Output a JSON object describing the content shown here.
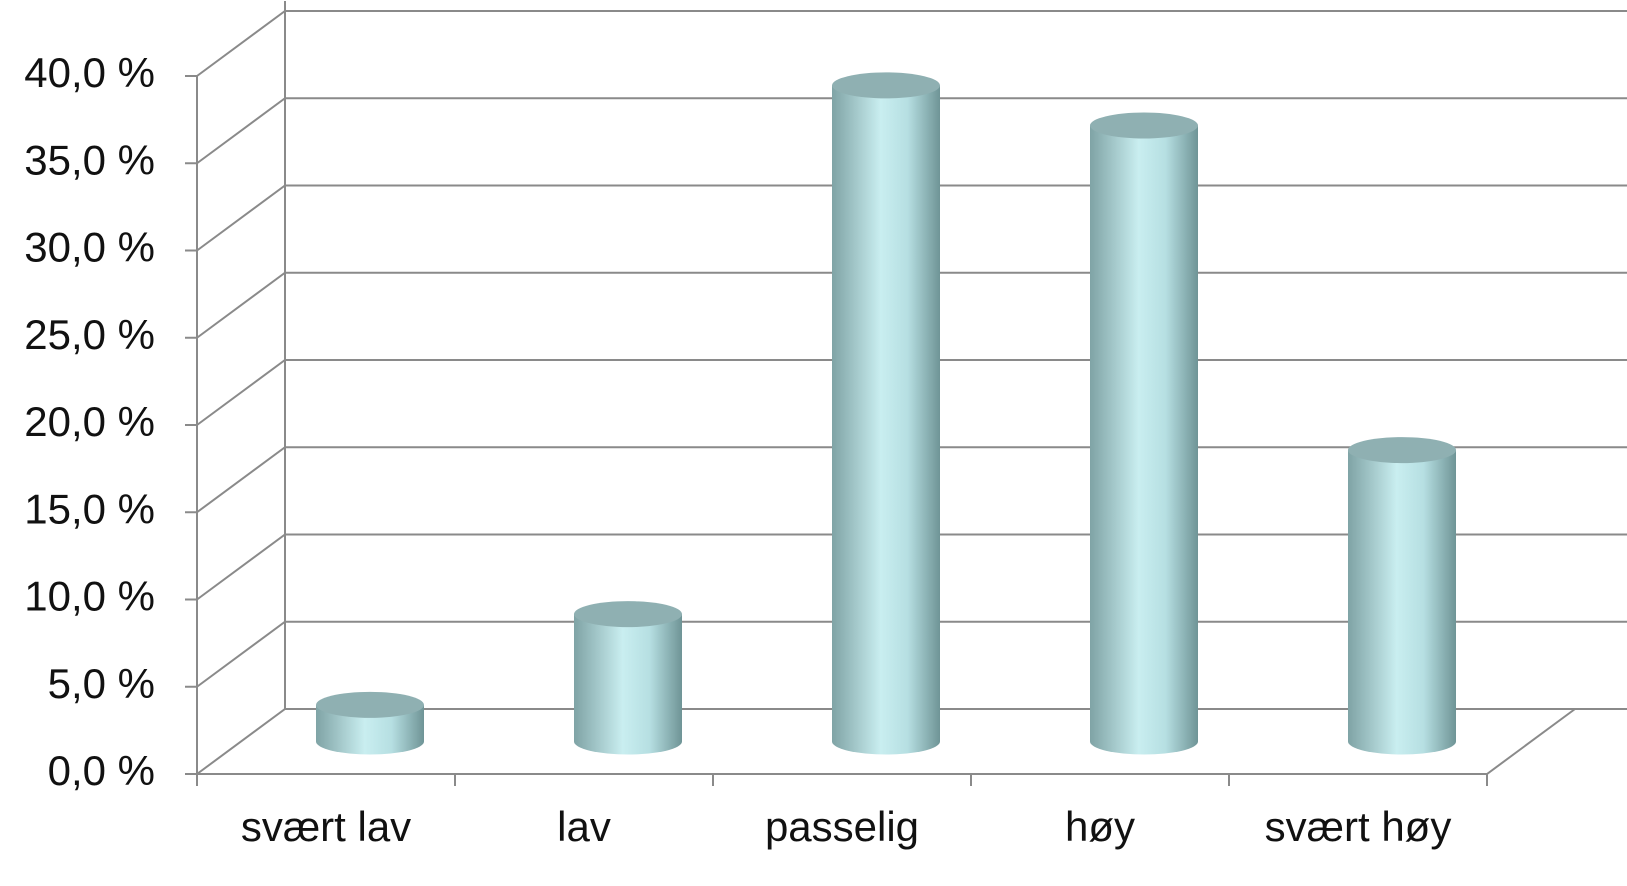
{
  "chart_data": {
    "type": "bar3d",
    "categories": [
      "svært lav",
      "lav",
      "passelig",
      "høy",
      "svært høy"
    ],
    "values": [
      2.1,
      7.3,
      37.6,
      35.3,
      16.7
    ],
    "color": "#b9e3e6",
    "ylim": [
      0,
      40
    ],
    "yticks": [
      {
        "value": 0,
        "label": "0,0 %"
      },
      {
        "value": 5,
        "label": "5,0 %"
      },
      {
        "value": 10,
        "label": "10,0 %"
      },
      {
        "value": 15,
        "label": "15,0 %"
      },
      {
        "value": 20,
        "label": "20,0 %"
      },
      {
        "value": 25,
        "label": "25,0 %"
      },
      {
        "value": 30,
        "label": "30,0 %"
      },
      {
        "value": 35,
        "label": "35,0 %"
      },
      {
        "value": 40,
        "label": "40,0 %"
      }
    ],
    "grid": true
  }
}
